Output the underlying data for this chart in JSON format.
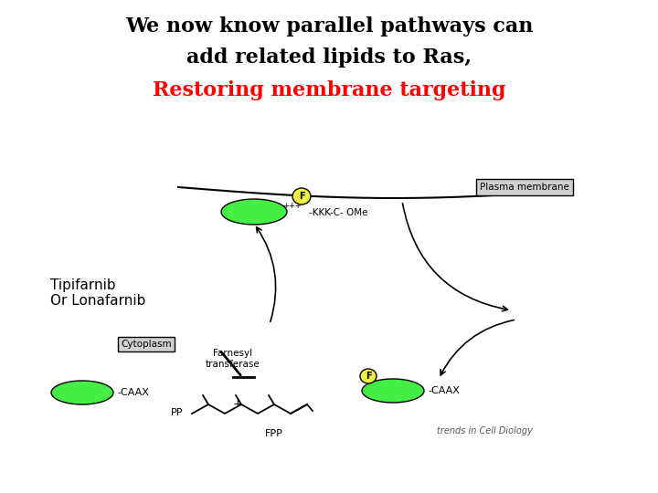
{
  "title_line1": "We now know parallel pathways can",
  "title_line2": "add related lipids to Ras,",
  "title_line3": "Restoring membrane targeting",
  "title_color1": "black",
  "title_color3": "red",
  "bg_color": "white",
  "tipifarnib_text": "Tipifarnib\nOr Lonafarnib",
  "cytoplasm_label": "Cytoplasm",
  "plasma_membrane_label": "Plasma membrane",
  "caax_left_label": "-CAAX",
  "caax_right_label": "-CAAX",
  "kkk_label": "-KKK-C- OMe",
  "fpp_label": "FPP",
  "pp_label": "PP",
  "farnesyl_label": "Farnesyl\ntransferase",
  "trends_label": "trends in Cell Diology",
  "ellipse_color": "#44ee44",
  "yellow_circle_color": "#eeee44",
  "fig_width": 7.2,
  "fig_height": 5.4
}
